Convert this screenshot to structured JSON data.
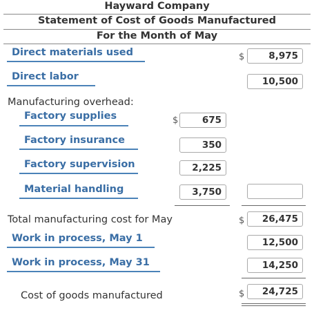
{
  "statement": {
    "company": "Hayward Company",
    "title": "Statement of Cost of Goods Manufactured",
    "period": "For the Month of May"
  },
  "currency_symbol": "$",
  "rows": {
    "direct_materials": {
      "label": "Direct materials used",
      "value": "8,975"
    },
    "direct_labor": {
      "label": "Direct labor",
      "value": "10,500"
    },
    "overhead_heading": "Manufacturing overhead:",
    "overhead_items": [
      {
        "label": "Factory supplies",
        "value": "675"
      },
      {
        "label": "Factory insurance",
        "value": "350"
      },
      {
        "label": "Factory supervision",
        "value": "2,225"
      },
      {
        "label": "Material handling",
        "value": "3,750"
      }
    ],
    "total_overhead": {
      "value": ""
    },
    "total_manufacturing_cost": {
      "label": "Total manufacturing cost for May",
      "value": "26,475"
    },
    "wip_beginning": {
      "label": "Work in process, May 1",
      "value": "12,500"
    },
    "wip_ending": {
      "label": "Work in process, May 31",
      "value": "14,250"
    },
    "cogm": {
      "label": "Cost of goods manufactured",
      "value": "24,725"
    }
  },
  "colors": {
    "label_blue": "#3a6ea5",
    "underline_blue": "#4a82b8",
    "text": "#333333"
  }
}
